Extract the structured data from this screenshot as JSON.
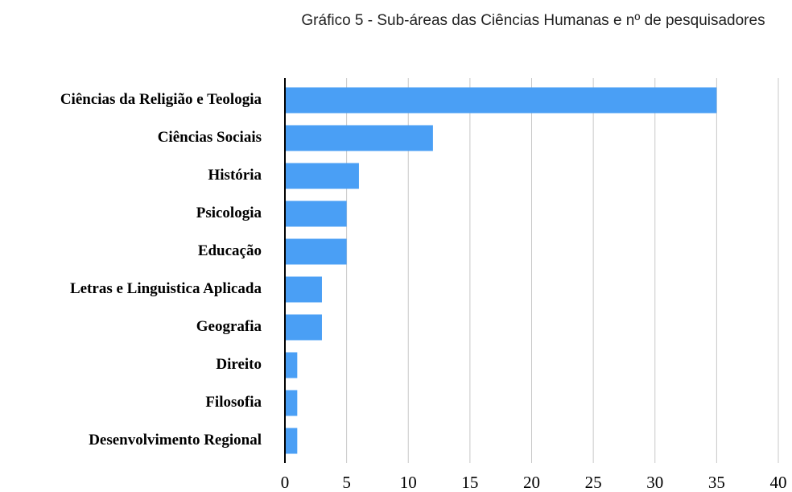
{
  "chart_data": {
    "type": "bar",
    "orientation": "horizontal",
    "title": "Gráfico 5 - Sub-áreas das Ciências Humanas e nº de pesquisadores",
    "categories": [
      "Ciências da Religião e Teologia",
      "Ciências Sociais",
      "História",
      "Psicologia",
      "Educação",
      "Letras e Linguistica Aplicada",
      "Geografia",
      "Direito",
      "Filosofia",
      "Desenvolvimento Regional"
    ],
    "values": [
      35,
      12,
      6,
      5,
      5,
      3,
      3,
      1,
      1,
      1
    ],
    "color": "#4a9ff5",
    "xlim": [
      0,
      40
    ],
    "xticks": [
      0,
      5,
      10,
      15,
      20,
      25,
      30,
      35,
      40
    ],
    "grid": true
  }
}
